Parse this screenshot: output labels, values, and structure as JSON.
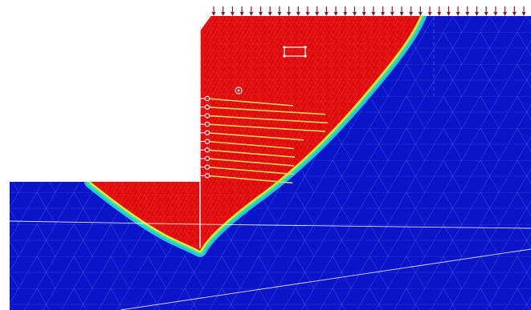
{
  "scene": {
    "description_free": true,
    "load_arrow_count": 34,
    "nail_count": 10,
    "colors": {
      "background": "#ffffff",
      "stable_zone": "#0a14c8",
      "failure_zone": "#e00a0a",
      "transition_outer": "#22c3e6",
      "transition_mid": "#2ee6a0",
      "transition_inner": "#f2e62a",
      "mesh_line": "#8ea0ff",
      "mesh_line_red": "#f06a6a",
      "boundary_line": "#ffffff",
      "nail": "#e6d35a",
      "nail_head": "#ffffff",
      "load_arrow": "#8a1a2a"
    }
  }
}
